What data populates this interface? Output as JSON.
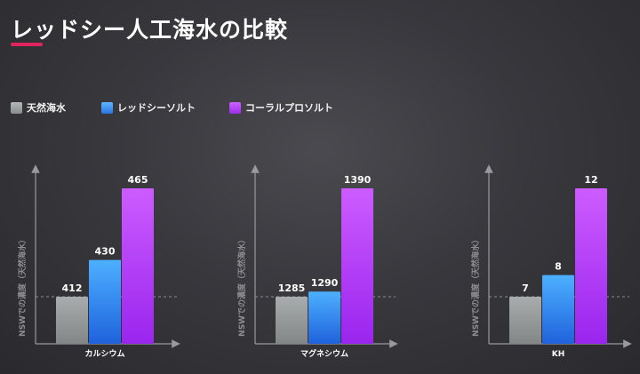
{
  "title": "レッドシー人工海水の比較",
  "legend": [
    {
      "label": "天然海水",
      "color": "#9a9d9d"
    },
    {
      "label": "レッドシーソルト",
      "color": "#3f95ef"
    },
    {
      "label": "コーラルプロソルト",
      "color": "#b03cf0"
    }
  ],
  "chart_data": [
    {
      "type": "bar",
      "categories": [
        "カルシウム"
      ],
      "ylabel": "NSWでの濃度（天然海水）",
      "series": [
        {
          "name": "天然海水",
          "values": [
            412
          ]
        },
        {
          "name": "レッドシーソルト",
          "values": [
            430
          ]
        },
        {
          "name": "コーラルプロソルト",
          "values": [
            465
          ]
        }
      ],
      "reference_line": 412
    },
    {
      "type": "bar",
      "categories": [
        "マグネシウム"
      ],
      "ylabel": "NSWでの濃度（天然海水）",
      "series": [
        {
          "name": "天然海水",
          "values": [
            1285
          ]
        },
        {
          "name": "レッドシーソルト",
          "values": [
            1290
          ]
        },
        {
          "name": "コーラルプロソルト",
          "values": [
            1390
          ]
        }
      ],
      "reference_line": 1285
    },
    {
      "type": "bar",
      "categories": [
        "KH"
      ],
      "ylabel": "NSWでの濃度（天然海水）",
      "series": [
        {
          "name": "天然海水",
          "values": [
            7
          ]
        },
        {
          "name": "レッドシーソルト",
          "values": [
            8
          ]
        },
        {
          "name": "コーラルプロソルト",
          "values": [
            12
          ]
        }
      ],
      "reference_line": 7
    }
  ]
}
